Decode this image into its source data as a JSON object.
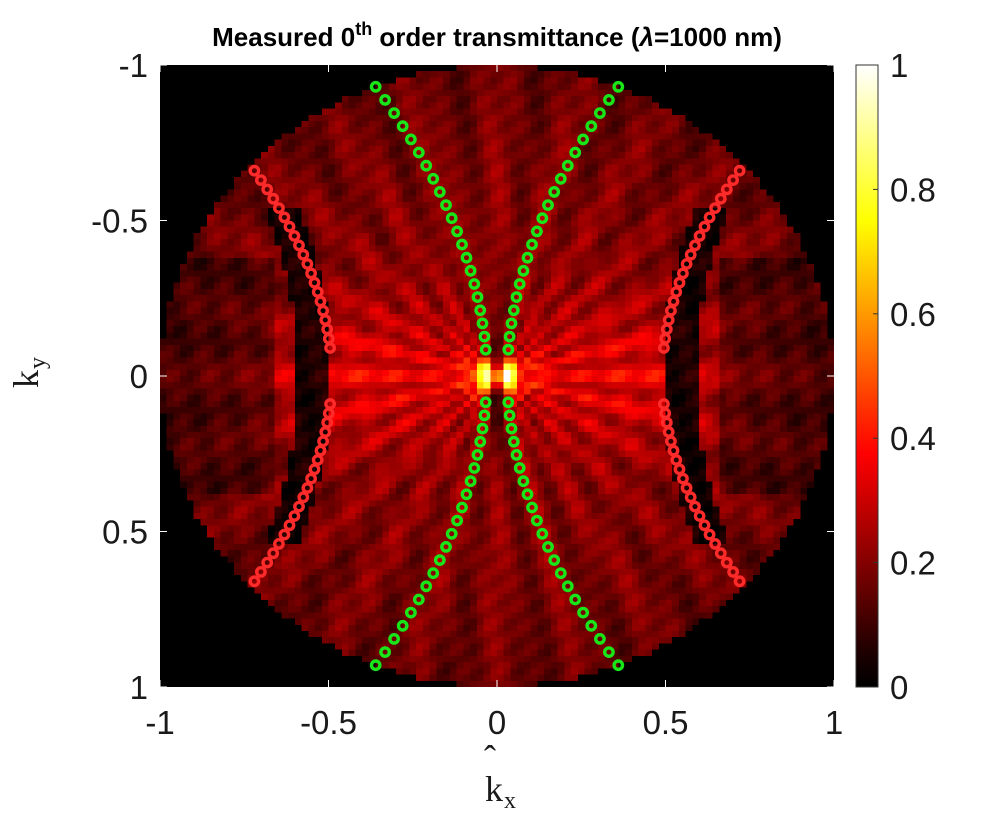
{
  "chart_data": {
    "type": "heatmap",
    "title": {
      "prefix": "Measured 0",
      "superscript": "th",
      "suffix": " order transmittance (",
      "symbol": "λ",
      "tail": "=1000 nm)"
    },
    "xlabel": {
      "base": "k",
      "hat": "ˆ",
      "sub": "x"
    },
    "ylabel": {
      "base": "k",
      "hat": "ˆ",
      "sub": "y"
    },
    "xlim": [
      -1,
      1
    ],
    "ylim": [
      -1,
      1
    ],
    "y_reversed": true,
    "x_ticks": [
      {
        "value": -1,
        "label": "-1"
      },
      {
        "value": -0.5,
        "label": "-0.5"
      },
      {
        "value": 0,
        "label": "0"
      },
      {
        "value": 0.5,
        "label": "0.5"
      },
      {
        "value": 1,
        "label": "1"
      }
    ],
    "y_ticks": [
      {
        "value": -1,
        "label": "-1"
      },
      {
        "value": -0.5,
        "label": "-0.5"
      },
      {
        "value": 0,
        "label": "0"
      },
      {
        "value": 0.5,
        "label": "0.5"
      },
      {
        "value": 1,
        "label": "1"
      }
    ],
    "colorbar": {
      "colormap": "hot",
      "range": [
        0,
        1
      ],
      "ticks": [
        {
          "value": 0,
          "label": "0"
        },
        {
          "value": 0.2,
          "label": "0.2"
        },
        {
          "value": 0.4,
          "label": "0.4"
        },
        {
          "value": 0.6,
          "label": "0.6"
        },
        {
          "value": 0.8,
          "label": "0.8"
        },
        {
          "value": 1,
          "label": "1"
        }
      ]
    },
    "heatmap": {
      "domain": "unit-disk",
      "grid_resolution": 100,
      "peak_value": 1.0,
      "peak_location": [
        0,
        0
      ]
    },
    "series": [
      {
        "color": "#ff2a2a",
        "marker": "circle",
        "branches": [
          {
            "side": "left",
            "x_at_ky0": -0.49,
            "x_at_ky_edge": -0.72,
            "ky_edge": 0.66
          },
          {
            "side": "right",
            "x_at_ky0": 0.49,
            "x_at_ky_edge": 0.72,
            "ky_edge": 0.66
          }
        ]
      },
      {
        "color": "#19e619",
        "marker": "circle",
        "branches": [
          {
            "side": "left",
            "x_at_ky0": -0.03,
            "x_at_ky_edge": -0.36,
            "ky_edge": 0.93
          },
          {
            "side": "right",
            "x_at_ky0": 0.03,
            "x_at_ky_edge": 0.36,
            "ky_edge": 0.93
          }
        ]
      }
    ]
  }
}
